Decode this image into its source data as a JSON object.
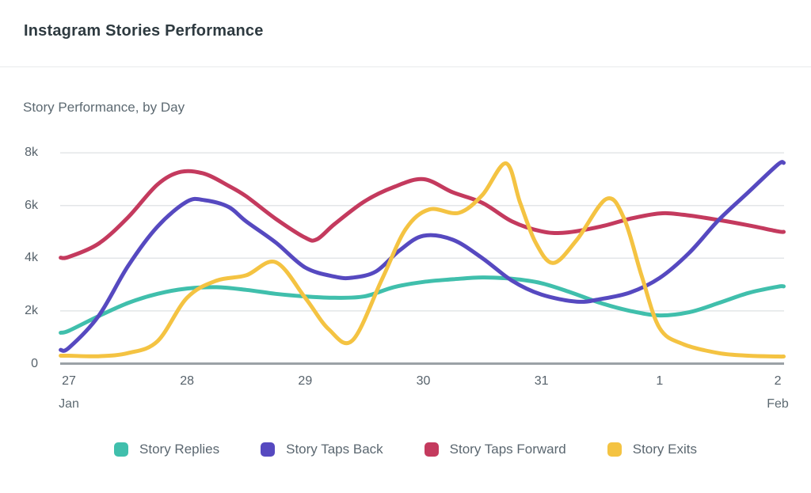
{
  "header": {
    "title": "Instagram Stories Performance"
  },
  "chart": {
    "subtitle": "Story Performance, by Day"
  },
  "colors": {
    "grid": "#e3e6e8",
    "baseline": "#9ba1a6",
    "axis_text": "#57626b",
    "muted_text": "#5d6a72"
  },
  "chart_data": {
    "type": "line",
    "title": "Story Performance, by Day",
    "x_unit": "days (0 = Jan 27)",
    "y_unit": "thousands",
    "grid": true,
    "legend_position": "bottom",
    "x_axis": {
      "tick_positions": [
        0,
        1,
        2,
        3,
        4,
        5,
        6
      ],
      "tick_labels": [
        "27",
        "28",
        "29",
        "30",
        "31",
        "1",
        "2"
      ],
      "month_start": "Jan",
      "month_end": "Feb"
    },
    "y_axis": {
      "tick_values": [
        0,
        2,
        4,
        6,
        8
      ],
      "tick_labels": [
        "0",
        "2k",
        "4k",
        "6k",
        "8k"
      ],
      "range": [
        0,
        8.7
      ]
    },
    "draw_order": [
      0,
      2,
      1,
      3
    ],
    "series": [
      {
        "name": "Story Replies",
        "color": "#40bfac",
        "points": [
          [
            -0.07,
            1.17
          ],
          [
            0,
            1.25
          ],
          [
            0.25,
            1.8
          ],
          [
            0.5,
            2.3
          ],
          [
            0.75,
            2.65
          ],
          [
            1,
            2.85
          ],
          [
            1.25,
            2.9
          ],
          [
            1.5,
            2.8
          ],
          [
            1.75,
            2.65
          ],
          [
            2,
            2.55
          ],
          [
            2.25,
            2.5
          ],
          [
            2.5,
            2.55
          ],
          [
            2.75,
            2.9
          ],
          [
            3,
            3.1
          ],
          [
            3.25,
            3.2
          ],
          [
            3.5,
            3.27
          ],
          [
            3.75,
            3.22
          ],
          [
            4,
            3.05
          ],
          [
            4.25,
            2.7
          ],
          [
            4.5,
            2.3
          ],
          [
            4.75,
            2.0
          ],
          [
            5,
            1.83
          ],
          [
            5.25,
            1.95
          ],
          [
            5.5,
            2.3
          ],
          [
            5.75,
            2.68
          ],
          [
            6,
            2.92
          ],
          [
            6.05,
            2.93
          ]
        ]
      },
      {
        "name": "Story Taps Back",
        "color": "#5649c0",
        "points": [
          [
            -0.07,
            0.52
          ],
          [
            0,
            0.6
          ],
          [
            0.25,
            1.8
          ],
          [
            0.5,
            3.7
          ],
          [
            0.75,
            5.2
          ],
          [
            1,
            6.15
          ],
          [
            1.15,
            6.2
          ],
          [
            1.35,
            5.95
          ],
          [
            1.5,
            5.4
          ],
          [
            1.75,
            4.6
          ],
          [
            2,
            3.65
          ],
          [
            2.25,
            3.3
          ],
          [
            2.4,
            3.26
          ],
          [
            2.6,
            3.5
          ],
          [
            2.8,
            4.3
          ],
          [
            3,
            4.85
          ],
          [
            3.25,
            4.7
          ],
          [
            3.5,
            4.0
          ],
          [
            3.75,
            3.15
          ],
          [
            4,
            2.62
          ],
          [
            4.3,
            2.35
          ],
          [
            4.5,
            2.45
          ],
          [
            4.75,
            2.7
          ],
          [
            5,
            3.25
          ],
          [
            5.25,
            4.2
          ],
          [
            5.5,
            5.45
          ],
          [
            5.75,
            6.5
          ],
          [
            6,
            7.55
          ],
          [
            6.05,
            7.62
          ]
        ]
      },
      {
        "name": "Story Taps Forward",
        "color": "#c43a5e",
        "points": [
          [
            -0.07,
            4.02
          ],
          [
            0,
            4.05
          ],
          [
            0.25,
            4.55
          ],
          [
            0.5,
            5.55
          ],
          [
            0.75,
            6.8
          ],
          [
            0.95,
            7.28
          ],
          [
            1.15,
            7.2
          ],
          [
            1.35,
            6.75
          ],
          [
            1.5,
            6.35
          ],
          [
            1.75,
            5.5
          ],
          [
            2,
            4.78
          ],
          [
            2.1,
            4.72
          ],
          [
            2.25,
            5.3
          ],
          [
            2.5,
            6.15
          ],
          [
            2.75,
            6.7
          ],
          [
            3,
            7.0
          ],
          [
            3.25,
            6.5
          ],
          [
            3.5,
            6.1
          ],
          [
            3.75,
            5.4
          ],
          [
            4,
            5.02
          ],
          [
            4.2,
            4.97
          ],
          [
            4.5,
            5.2
          ],
          [
            4.75,
            5.5
          ],
          [
            5,
            5.7
          ],
          [
            5.2,
            5.65
          ],
          [
            5.5,
            5.45
          ],
          [
            5.75,
            5.25
          ],
          [
            6,
            5.02
          ],
          [
            6.05,
            5.0
          ]
        ]
      },
      {
        "name": "Story Exits",
        "color": "#f4c342",
        "points": [
          [
            -0.07,
            0.3
          ],
          [
            0,
            0.3
          ],
          [
            0.25,
            0.28
          ],
          [
            0.5,
            0.4
          ],
          [
            0.75,
            0.85
          ],
          [
            1,
            2.5
          ],
          [
            1.25,
            3.15
          ],
          [
            1.5,
            3.35
          ],
          [
            1.75,
            3.85
          ],
          [
            2,
            2.5
          ],
          [
            2.2,
            1.3
          ],
          [
            2.4,
            0.88
          ],
          [
            2.65,
            3.2
          ],
          [
            2.85,
            5.1
          ],
          [
            3.05,
            5.85
          ],
          [
            3.3,
            5.72
          ],
          [
            3.5,
            6.4
          ],
          [
            3.7,
            7.6
          ],
          [
            3.82,
            6.1
          ],
          [
            3.95,
            4.6
          ],
          [
            4.1,
            3.82
          ],
          [
            4.3,
            4.7
          ],
          [
            4.55,
            6.25
          ],
          [
            4.7,
            5.5
          ],
          [
            4.85,
            3.3
          ],
          [
            5,
            1.35
          ],
          [
            5.2,
            0.74
          ],
          [
            5.5,
            0.4
          ],
          [
            5.75,
            0.3
          ],
          [
            6,
            0.27
          ],
          [
            6.05,
            0.27
          ]
        ]
      }
    ]
  }
}
